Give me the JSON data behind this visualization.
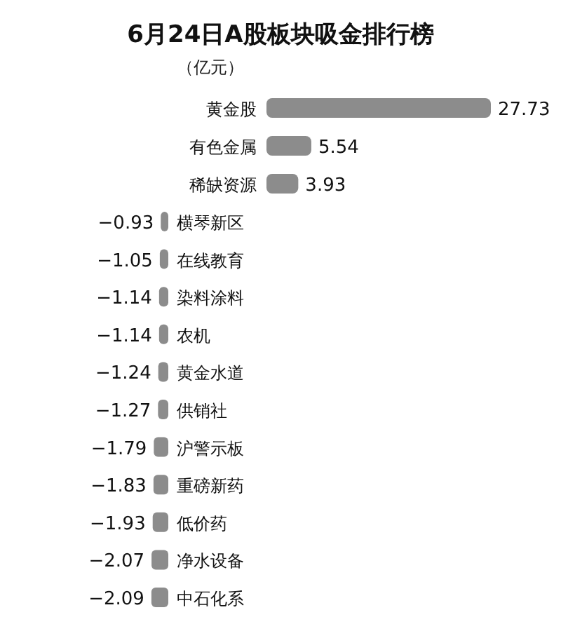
{
  "chart_data": [
    {
      "type": "bar",
      "orientation": "horizontal",
      "title": "6月24日A股板块吸金排行榜",
      "subtitle": "（亿元）",
      "categories": [
        "黄金股",
        "有色金属",
        "稀缺资源"
      ],
      "values": [
        27.73,
        5.54,
        3.93
      ],
      "color": "#8c8c8c",
      "data_labels": true
    },
    {
      "type": "bar",
      "orientation": "horizontal",
      "categories": [
        "横琴新区",
        "在线教育",
        "染料涂料",
        "农机",
        "黄金水道",
        "供销社",
        "沪警示板",
        "重磅新药",
        "低价药",
        "净水设备",
        "中石化系"
      ],
      "values": [
        -0.93,
        -1.05,
        -1.14,
        -1.14,
        -1.24,
        -1.27,
        -1.79,
        -1.83,
        -1.93,
        -2.07,
        -2.09
      ],
      "color": "#8c8c8c",
      "data_labels": true
    }
  ]
}
